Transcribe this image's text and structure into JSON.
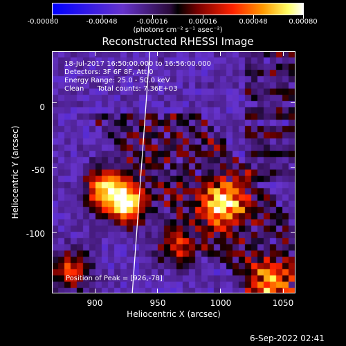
{
  "colorbar": {
    "tick_labels": [
      "-0.00080",
      "-0.00048",
      "-0.00016",
      "0.00016",
      "0.00048",
      "0.00080"
    ],
    "values": [
      -0.0008,
      -0.00048,
      -0.00016,
      0.00016,
      0.00048,
      0.0008
    ],
    "range": [
      -0.0008,
      0.0008
    ],
    "unit_label": "(photons cm⁻² s⁻¹ asec⁻²)"
  },
  "info": {
    "line1": "18-Jul-2017 16:50:00.000 to 16:56:00.000",
    "line2": "Detectors: 3F 6F 8F, Att 0",
    "line3": "Energy Range: 25.0 - 50.0 keV",
    "line4": "Clean      Total counts: 7.36E+03",
    "peak": "Position of Peak = [926,-78]"
  },
  "timestamp": "6-Sep-2022 02:41",
  "colors": {
    "background": "#000000",
    "foreground": "#ffffff",
    "limb": "#ffffff"
  },
  "chart_data": {
    "type": "heatmap",
    "title": "Reconstructed RHESSI Image",
    "xlabel": "Heliocentric X (arcsec)",
    "ylabel": "Heliocentric Y (arcsec)",
    "xlim": [
      866,
      1060
    ],
    "ylim": [
      -148,
      40
    ],
    "x_ticks": [
      900,
      950,
      1000,
      1050
    ],
    "y_ticks": [
      0,
      -50,
      -100
    ],
    "x_tick_labels": [
      "900",
      "950",
      "1000",
      "1050"
    ],
    "y_tick_labels": [
      "0",
      "-50",
      "-100"
    ],
    "peak": [
      926,
      -78
    ],
    "limb_line": [
      [
        944,
        40
      ],
      [
        930,
        -148
      ]
    ],
    "sources": [
      {
        "x": 926,
        "y": -78,
        "intensity": 1.0
      },
      {
        "x": 908,
        "y": -66,
        "intensity": 0.75
      },
      {
        "x": 1003,
        "y": -78,
        "intensity": 0.8
      },
      {
        "x": 966,
        "y": -110,
        "intensity": 0.55
      },
      {
        "x": 880,
        "y": -130,
        "intensity": 0.55
      },
      {
        "x": 1040,
        "y": -140,
        "intensity": 0.6
      }
    ]
  }
}
